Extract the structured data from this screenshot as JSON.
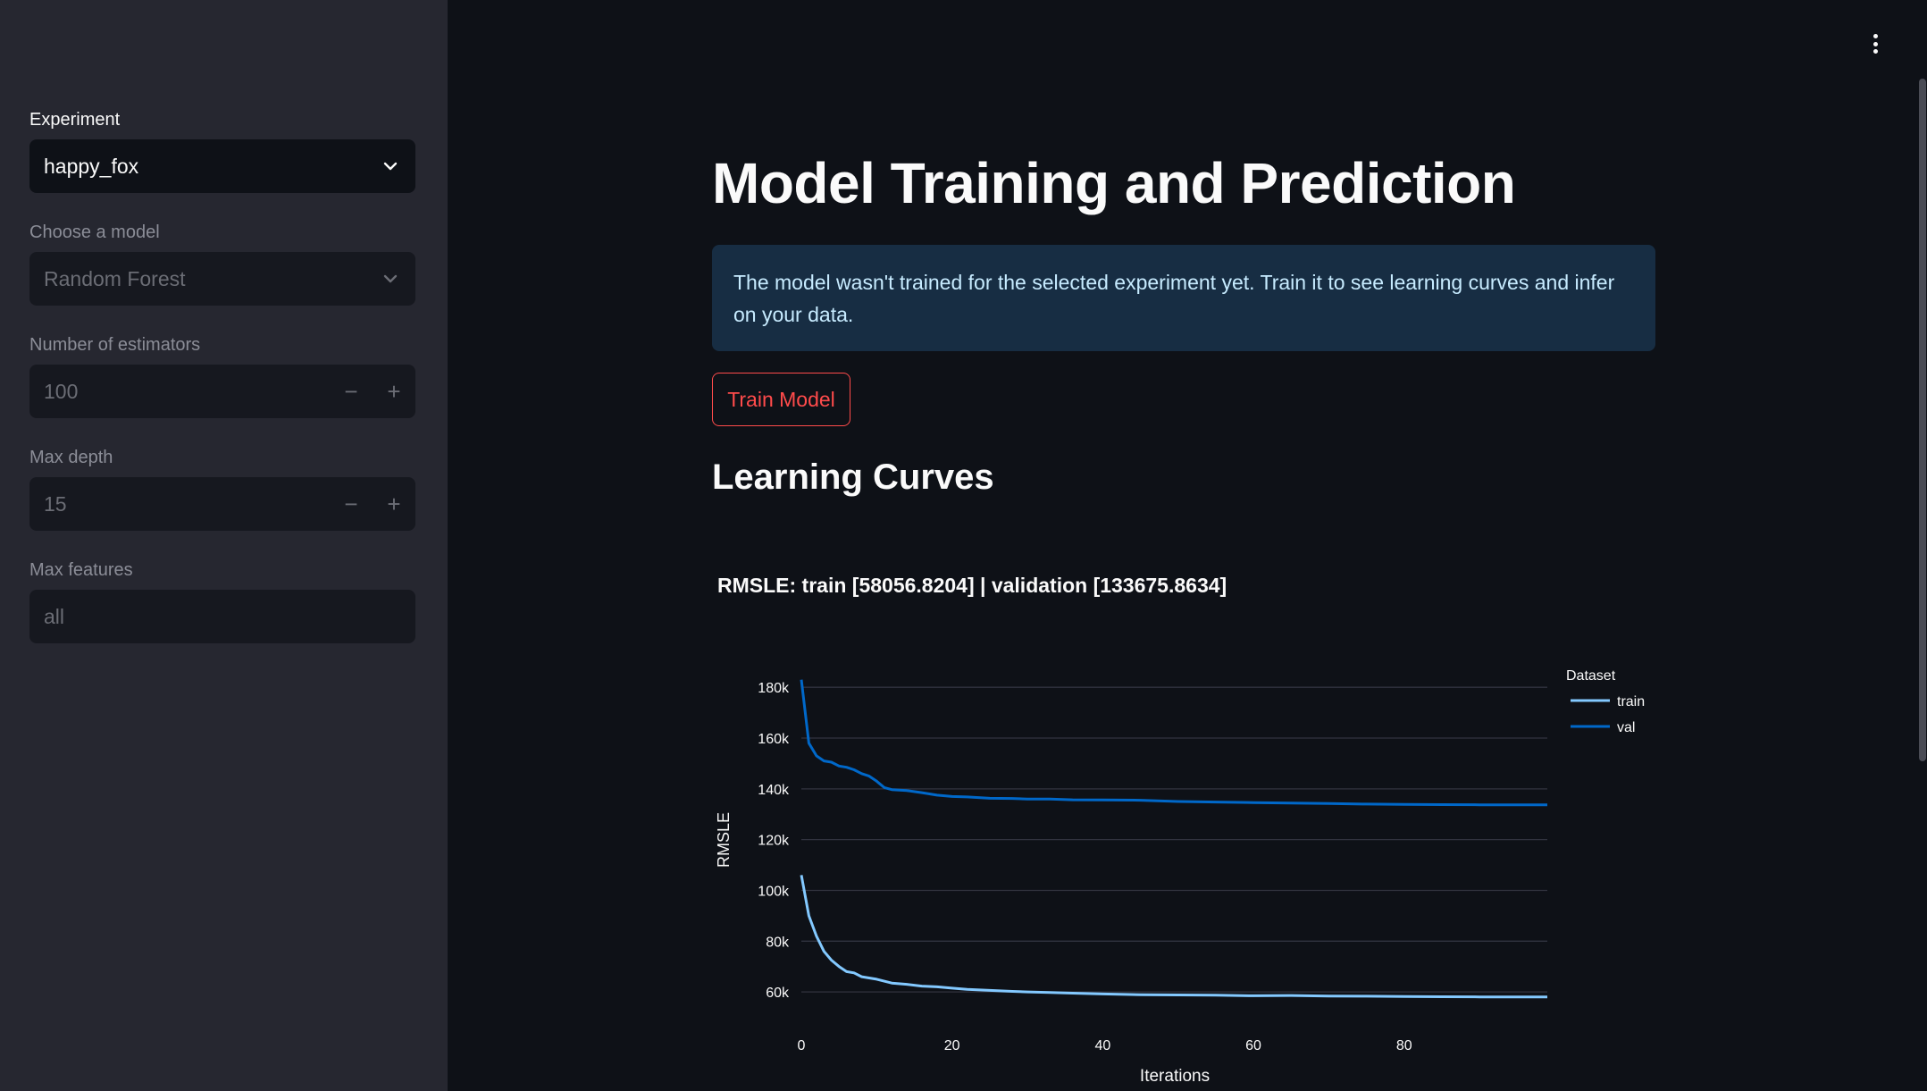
{
  "sidebar": {
    "experiment": {
      "label": "Experiment",
      "value": "happy_fox"
    },
    "model": {
      "label": "Choose a model",
      "value": "Random Forest"
    },
    "estimators": {
      "label": "Number of estimators",
      "value": "100"
    },
    "max_depth": {
      "label": "Max depth",
      "value": "15"
    },
    "max_features": {
      "label": "Max features",
      "value": "all"
    },
    "stepper_minus": "−",
    "stepper_plus": "+"
  },
  "main": {
    "title": "Model Training and Prediction",
    "info": "The model wasn't trained for the selected experiment yet. Train it to see learning curves and infer on your data.",
    "train_button": "Train Model",
    "section_title": "Learning Curves"
  },
  "colors": {
    "accent": "#ff4b4b",
    "train": "#83c9ff",
    "val": "#0068c9",
    "sidebar_bg": "#262730",
    "main_bg": "#0e1117",
    "info_bg": "#172d43"
  },
  "chart_data": {
    "type": "line",
    "title": "RMSLE: train [58056.8204] | validation [133675.8634]",
    "xlabel": "Iterations",
    "ylabel": "RMSLE",
    "xlim": [
      0,
      99
    ],
    "ylim": [
      53000,
      185000
    ],
    "x_ticks": [
      0,
      20,
      40,
      60,
      80
    ],
    "x_tick_labels": [
      "0",
      "20",
      "40",
      "60",
      "80"
    ],
    "y_ticks": [
      60000,
      80000,
      100000,
      120000,
      140000,
      160000,
      180000
    ],
    "y_tick_labels": [
      "60k",
      "80k",
      "100k",
      "120k",
      "140k",
      "160k",
      "180k"
    ],
    "grid": "horizontal",
    "legend": {
      "title": "Dataset",
      "position": "top-right"
    },
    "series": [
      {
        "name": "train",
        "color": "#83c9ff",
        "x": [
          0,
          1,
          2,
          3,
          4,
          5,
          6,
          7,
          8,
          9,
          10,
          12,
          14,
          16,
          18,
          20,
          22,
          25,
          28,
          30,
          33,
          36,
          40,
          45,
          50,
          55,
          60,
          65,
          70,
          75,
          80,
          85,
          90,
          95,
          99
        ],
        "y": [
          106000,
          90000,
          82000,
          76000,
          72500,
          70000,
          68000,
          67500,
          66000,
          65500,
          65000,
          63500,
          63000,
          62300,
          62000,
          61500,
          61000,
          60600,
          60200,
          60000,
          59800,
          59500,
          59200,
          58900,
          58800,
          58700,
          58500,
          58600,
          58400,
          58300,
          58200,
          58100,
          58050,
          58000,
          58000
        ]
      },
      {
        "name": "val",
        "color": "#0068c9",
        "x": [
          0,
          1,
          2,
          3,
          4,
          5,
          6,
          7,
          8,
          9,
          10,
          11,
          12,
          14,
          16,
          18,
          20,
          22,
          25,
          28,
          30,
          33,
          36,
          40,
          45,
          50,
          55,
          60,
          65,
          70,
          75,
          80,
          85,
          90,
          95,
          99
        ],
        "y": [
          183000,
          158000,
          153000,
          151000,
          150500,
          149000,
          148500,
          147500,
          146000,
          145000,
          143000,
          140500,
          139700,
          139300,
          138500,
          137500,
          137000,
          136800,
          136300,
          136200,
          136000,
          136000,
          135700,
          135600,
          135500,
          135000,
          134800,
          134600,
          134400,
          134200,
          134000,
          133900,
          133800,
          133700,
          133700,
          133680
        ]
      }
    ]
  }
}
